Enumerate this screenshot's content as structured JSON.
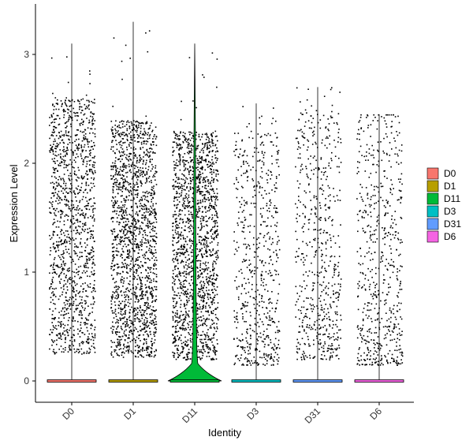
{
  "chart_data": {
    "type": "violin",
    "subtype": "violin-with-jittered-points",
    "xlabel": "Identity",
    "ylabel": "Expression Level",
    "categories": [
      "D0",
      "D1",
      "D11",
      "D3",
      "D31",
      "D6"
    ],
    "ylim": [
      -0.15,
      3.4
    ],
    "yticks": [
      0,
      1,
      2,
      3
    ],
    "grid": false,
    "legend_position": "right",
    "colors": {
      "D0": "#F8766D",
      "D1": "#B79F00",
      "D11": "#00BA38",
      "D3": "#00BFC4",
      "D31": "#619CFF",
      "D6": "#F564E3"
    },
    "series": [
      {
        "name": "D0",
        "max": 3.1,
        "jitter_range": [
          0.25,
          2.6
        ],
        "density": "dense"
      },
      {
        "name": "D1",
        "max": 3.3,
        "jitter_range": [
          0.22,
          2.4
        ],
        "density": "very-dense"
      },
      {
        "name": "D11",
        "max": 3.1,
        "jitter_range": [
          0.2,
          2.3
        ],
        "density": "very-dense",
        "violin_visible": true
      },
      {
        "name": "D3",
        "max": 2.55,
        "jitter_range": [
          0.15,
          2.3
        ],
        "density": "sparse"
      },
      {
        "name": "D31",
        "max": 2.7,
        "jitter_range": [
          0.2,
          2.5
        ],
        "density": "sparse"
      },
      {
        "name": "D6",
        "max": 2.45,
        "jitter_range": [
          0.15,
          2.45
        ],
        "density": "sparse"
      }
    ],
    "legend": [
      "D0",
      "D1",
      "D11",
      "D3",
      "D31",
      "D6"
    ]
  }
}
